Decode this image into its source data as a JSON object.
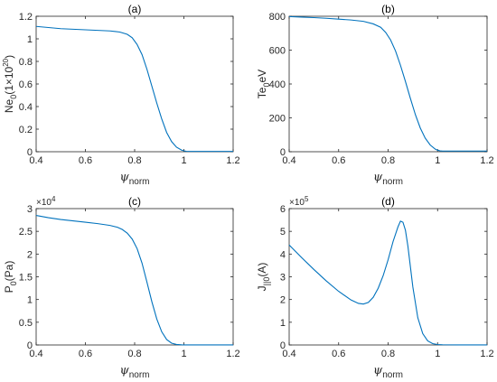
{
  "colors": {
    "line": "#0072BD",
    "axis": "#262626"
  },
  "chart_data": [
    {
      "type": "line",
      "title": "(a)",
      "xlabel": {
        "symbol": "ψ",
        "sub": "norm"
      },
      "ylabel": {
        "main": "Ne",
        "sub": "0",
        "rest": "(1×10",
        "sup": "20",
        "close": ")"
      },
      "xlim": [
        0.4,
        1.2
      ],
      "ylim": [
        0,
        1.2
      ],
      "xticks": [
        "0.4",
        "0.6",
        "0.8",
        "1",
        "1.2"
      ],
      "yticks": [
        "0",
        "0.2",
        "0.4",
        "0.6",
        "0.8",
        "1",
        "1.2"
      ],
      "exponent": null,
      "series": [
        {
          "x": [
            0.4,
            0.45,
            0.5,
            0.55,
            0.6,
            0.65,
            0.7,
            0.74,
            0.77,
            0.79,
            0.81,
            0.83,
            0.85,
            0.87,
            0.89,
            0.91,
            0.93,
            0.95,
            0.97,
            0.99,
            1.0,
            1.01,
            1.02,
            1.05,
            1.1,
            1.15,
            1.2
          ],
          "y": [
            1.11,
            1.1,
            1.09,
            1.085,
            1.08,
            1.075,
            1.07,
            1.06,
            1.04,
            1.01,
            0.95,
            0.86,
            0.73,
            0.58,
            0.43,
            0.29,
            0.17,
            0.09,
            0.04,
            0.015,
            0.008,
            0.004,
            0.003,
            0.003,
            0.003,
            0.003,
            0.003
          ]
        }
      ]
    },
    {
      "type": "line",
      "title": "(b)",
      "xlabel": {
        "symbol": "ψ",
        "sub": "norm"
      },
      "ylabel": {
        "main": "Te",
        "sub": "0",
        "rest": "eV",
        "sup": "",
        "close": ""
      },
      "xlim": [
        0.4,
        1.2
      ],
      "ylim": [
        0,
        800
      ],
      "xticks": [
        "0.4",
        "0.6",
        "0.8",
        "1",
        "1.2"
      ],
      "yticks": [
        "0",
        "200",
        "400",
        "600",
        "800"
      ],
      "exponent": null,
      "series": [
        {
          "x": [
            0.4,
            0.45,
            0.5,
            0.55,
            0.6,
            0.65,
            0.7,
            0.74,
            0.77,
            0.79,
            0.81,
            0.83,
            0.85,
            0.87,
            0.89,
            0.91,
            0.93,
            0.95,
            0.97,
            0.99,
            1.0,
            1.01,
            1.02,
            1.05,
            1.1,
            1.15,
            1.2
          ],
          "y": [
            798,
            795,
            792,
            788,
            783,
            778,
            770,
            755,
            735,
            705,
            660,
            595,
            510,
            415,
            315,
            220,
            140,
            80,
            40,
            16,
            9,
            5,
            4,
            4,
            4,
            4,
            4
          ]
        }
      ]
    },
    {
      "type": "line",
      "title": "(c)",
      "xlabel": {
        "symbol": "ψ",
        "sub": "norm"
      },
      "ylabel": {
        "main": "P",
        "sub": "0",
        "rest": "(Pa)",
        "sup": "",
        "close": ""
      },
      "xlim": [
        0.4,
        1.2
      ],
      "ylim": [
        0,
        3
      ],
      "xticks": [
        "0.4",
        "0.6",
        "0.8",
        "1",
        "1.2"
      ],
      "yticks": [
        "0",
        "0.5",
        "1",
        "1.5",
        "2",
        "2.5",
        "3"
      ],
      "exponent": {
        "base": "×10",
        "power": "4"
      },
      "series": [
        {
          "x": [
            0.4,
            0.45,
            0.5,
            0.55,
            0.6,
            0.65,
            0.7,
            0.73,
            0.75,
            0.77,
            0.79,
            0.81,
            0.83,
            0.85,
            0.87,
            0.89,
            0.91,
            0.93,
            0.95,
            0.97,
            0.99,
            1.0,
            1.02,
            1.05,
            1.1,
            1.15,
            1.2
          ],
          "y": [
            2.85,
            2.8,
            2.76,
            2.73,
            2.7,
            2.67,
            2.63,
            2.59,
            2.54,
            2.46,
            2.33,
            2.12,
            1.8,
            1.38,
            0.95,
            0.57,
            0.29,
            0.12,
            0.04,
            0.012,
            0.004,
            0.002,
            0.001,
            0.001,
            0.001,
            0.001,
            0.001
          ]
        }
      ]
    },
    {
      "type": "line",
      "title": "(d)",
      "xlabel": {
        "symbol": "ψ",
        "sub": "norm"
      },
      "ylabel": {
        "main": "J",
        "sub": "||0",
        "rest": "(A)",
        "sup": "",
        "close": ""
      },
      "xlim": [
        0.4,
        1.2
      ],
      "ylim": [
        0,
        6
      ],
      "xticks": [
        "0.4",
        "0.6",
        "0.8",
        "1",
        "1.2"
      ],
      "yticks": [
        "0",
        "1",
        "2",
        "3",
        "4",
        "5",
        "6"
      ],
      "exponent": {
        "base": "×10",
        "power": "5"
      },
      "series": [
        {
          "x": [
            0.4,
            0.45,
            0.5,
            0.55,
            0.6,
            0.65,
            0.68,
            0.7,
            0.72,
            0.74,
            0.76,
            0.78,
            0.8,
            0.82,
            0.84,
            0.85,
            0.86,
            0.87,
            0.88,
            0.89,
            0.9,
            0.92,
            0.94,
            0.96,
            0.98,
            1.0,
            1.02,
            1.05,
            1.1,
            1.2
          ],
          "y": [
            4.4,
            3.85,
            3.32,
            2.82,
            2.36,
            1.98,
            1.83,
            1.8,
            1.87,
            2.1,
            2.5,
            3.05,
            3.75,
            4.55,
            5.2,
            5.45,
            5.4,
            5.05,
            4.35,
            3.45,
            2.55,
            1.2,
            0.5,
            0.18,
            0.06,
            0.02,
            0.01,
            0.005,
            0.003,
            0.003
          ]
        }
      ]
    }
  ]
}
